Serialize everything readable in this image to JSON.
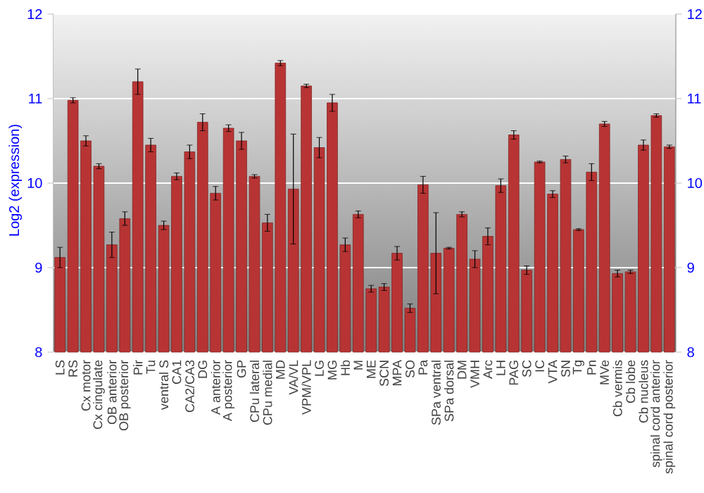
{
  "chart_data": {
    "type": "bar",
    "ylabel": "Log2 (expression)",
    "color": "#b83434",
    "grid": "y",
    "ylim": [
      8,
      12
    ],
    "yticks": [
      8,
      9,
      10,
      11,
      12
    ],
    "y2lim": [
      8,
      12
    ],
    "y2ticks": [
      8,
      9,
      10,
      11,
      12
    ],
    "categories": [
      "LS",
      "RS",
      "Cx motor",
      "Cx cingulate",
      "OB anterior",
      "OB posterior",
      "Pir",
      "Tu",
      "ventral S",
      "CA1",
      "CA2/CA3",
      "DG",
      "A anterior",
      "A posterior",
      "GP",
      "CPu lateral",
      "CPu medial",
      "MD",
      "VA/VL",
      "VPM/VPL",
      "LG",
      "MG",
      "Hb",
      "M",
      "ME",
      "SCN",
      "MPA",
      "SO",
      "Pa",
      "SPa ventral",
      "SPa dorsal",
      "DM",
      "VMH",
      "Arc",
      "LH",
      "PAG",
      "SC",
      "IC",
      "VTA",
      "SN",
      "Tg",
      "Pn",
      "MVe",
      "Cb vermis",
      "Cb lobe",
      "Cb nucleus",
      "spinal cord anterior",
      "spinal cord posterior"
    ],
    "values": [
      9.12,
      10.98,
      10.5,
      10.2,
      9.27,
      9.58,
      11.2,
      10.45,
      9.5,
      10.08,
      10.37,
      10.72,
      9.88,
      10.65,
      10.5,
      10.08,
      9.53,
      11.42,
      9.93,
      11.15,
      10.42,
      10.95,
      9.27,
      9.63,
      8.75,
      8.77,
      9.17,
      8.52,
      9.98,
      9.17,
      9.23,
      9.63,
      9.1,
      9.37,
      9.97,
      10.57,
      8.97,
      10.25,
      9.87,
      10.28,
      9.45,
      10.13,
      10.7,
      8.93,
      8.95,
      10.45,
      10.8,
      10.43
    ],
    "errors": [
      0.12,
      0.03,
      0.06,
      0.03,
      0.15,
      0.08,
      0.15,
      0.08,
      0.05,
      0.04,
      0.08,
      0.1,
      0.08,
      0.04,
      0.1,
      0.02,
      0.1,
      0.03,
      0.65,
      0.02,
      0.12,
      0.1,
      0.08,
      0.04,
      0.04,
      0.04,
      0.08,
      0.05,
      0.1,
      0.48,
      0.01,
      0.03,
      0.1,
      0.1,
      0.08,
      0.05,
      0.05,
      0.01,
      0.04,
      0.04,
      0.01,
      0.1,
      0.03,
      0.04,
      0.02,
      0.06,
      0.02,
      0.02
    ]
  }
}
